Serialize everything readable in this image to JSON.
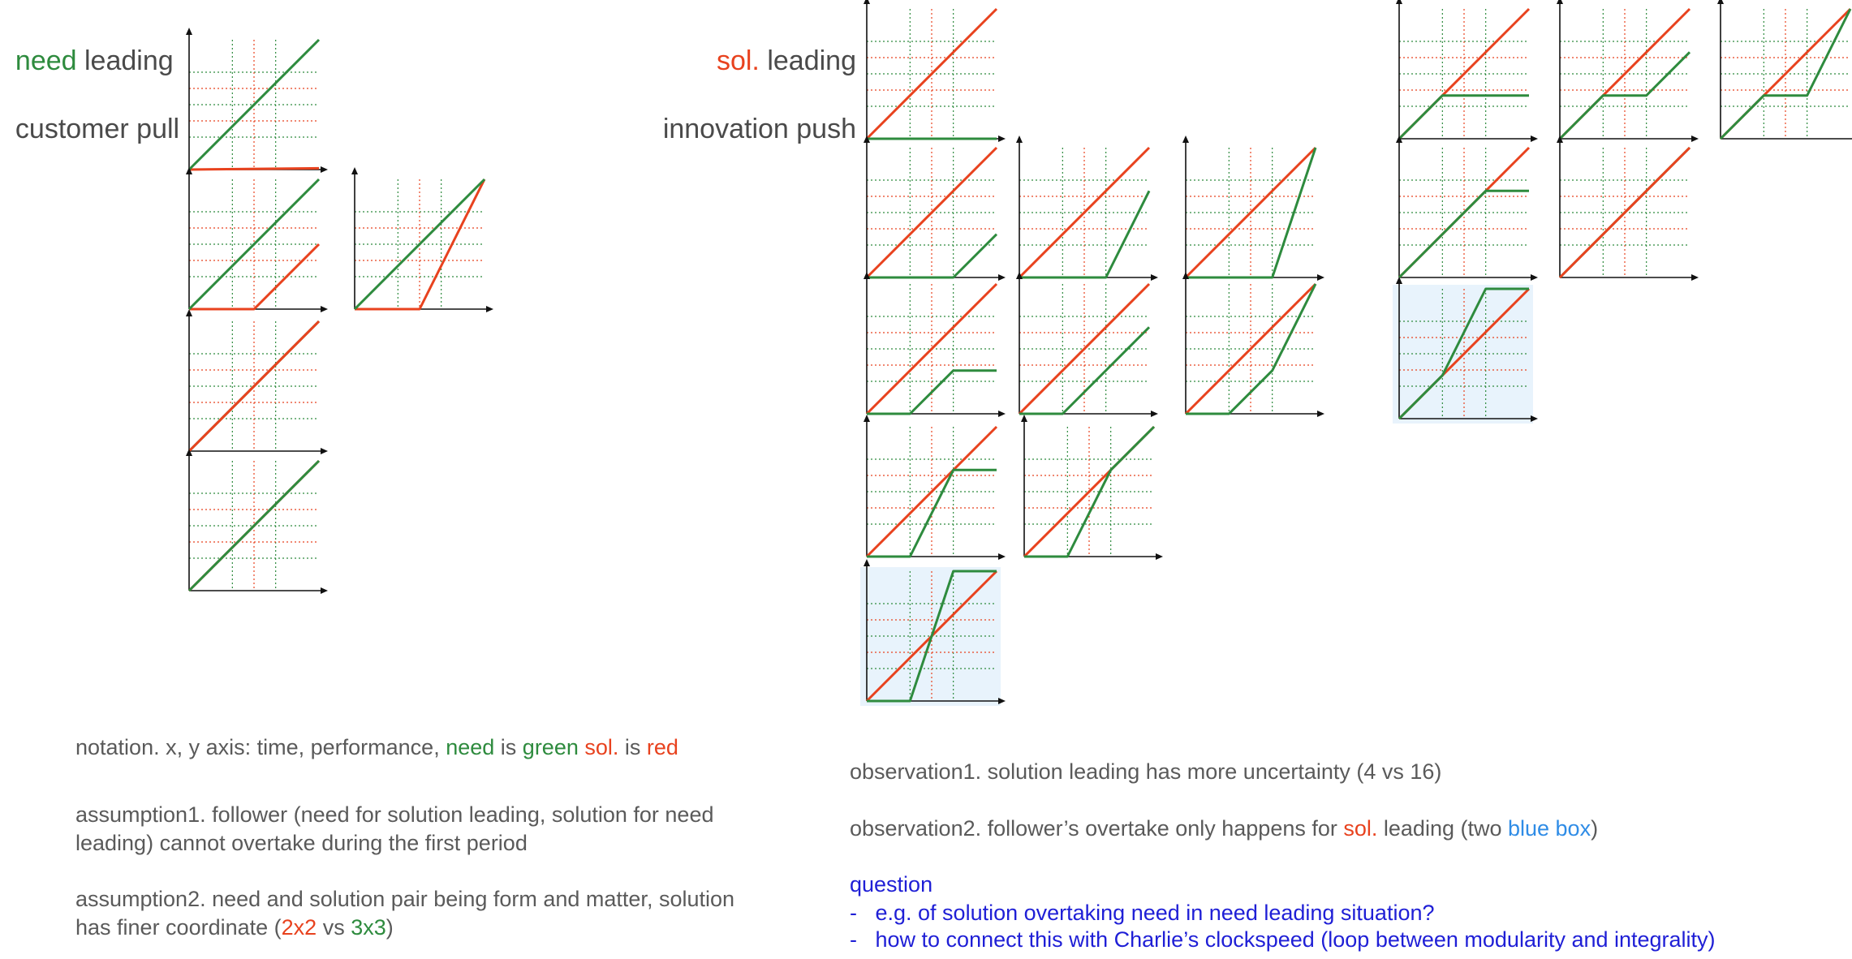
{
  "colors": {
    "need": "#2e8b3e",
    "sol": "#e8421e",
    "blue_box_text": "#2f8ce6",
    "question": "#1f1fd6",
    "text": "#5a5a5a",
    "highlight_fill": "#e8f3fc"
  },
  "headings": {
    "need_leading": {
      "word": "need",
      "rest": " leading",
      "line2": "customer pull"
    },
    "sol_leading": {
      "word": "sol.",
      "rest": " leading",
      "line2": "innovation push"
    }
  },
  "notation": {
    "prefix": "notation. x, y axis: time, performance, ",
    "need_word": "need",
    "is1": " is ",
    "green_word": "green",
    "space": " ",
    "sol_word": "sol.",
    "is2": " is ",
    "red_word": "red"
  },
  "assumption1": {
    "line1": "assumption1. follower (need for solution leading, solution for need",
    "line2": "leading) cannot overtake during the first period"
  },
  "assumption2": {
    "line1": "assumption2. need and solution pair being form and matter, solution",
    "line2_prefix": "has finer coordinate (",
    "red_part": "2x2",
    "vs": " vs ",
    "green_part": "3x3",
    "suffix": ")"
  },
  "observation1": "observation1. solution leading has more uncertainty (4 vs 16)",
  "observation2": {
    "prefix": "observation2. follower’s overtake only happens for ",
    "sol_word": "sol.",
    "mid": " leading (two ",
    "blue_word": "blue box",
    "suffix": ")"
  },
  "question": {
    "title": "question",
    "items": [
      "e.g. of solution overtaking need in need leading situation?",
      "how to connect this with Charlie’s clockspeed (loop between modularity and integrality)"
    ]
  }
}
